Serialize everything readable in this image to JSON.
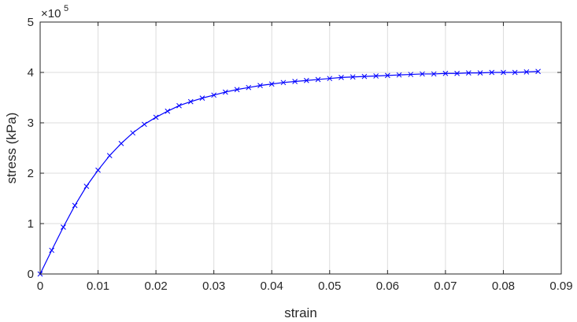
{
  "chart_data": {
    "type": "line",
    "title": "",
    "xlabel": "strain",
    "ylabel": "stress (kPa)",
    "xlim": [
      0,
      0.09
    ],
    "ylim": [
      0,
      5
    ],
    "y_exponent_label": "×10",
    "y_exponent_power": "5",
    "x_ticks": [
      "0",
      "0.01",
      "0.02",
      "0.03",
      "0.04",
      "0.05",
      "0.06",
      "0.07",
      "0.08",
      "0.09"
    ],
    "y_ticks": [
      "0",
      "1",
      "2",
      "3",
      "4",
      "5"
    ],
    "grid": true,
    "marker": "x",
    "line_color": "#0000ff",
    "series": [
      {
        "x": [
          0,
          0.002,
          0.004,
          0.006,
          0.008,
          0.01,
          0.012,
          0.014,
          0.016,
          0.018,
          0.02,
          0.022,
          0.024,
          0.026,
          0.028,
          0.03,
          0.032,
          0.034,
          0.036,
          0.038,
          0.04,
          0.042,
          0.044,
          0.046,
          0.048,
          0.05,
          0.052,
          0.054,
          0.056,
          0.058,
          0.06,
          0.062,
          0.064,
          0.066,
          0.068,
          0.07,
          0.072,
          0.074,
          0.076,
          0.078,
          0.08,
          0.082,
          0.084,
          0.086
        ],
        "values": [
          0,
          0.47,
          0.93,
          1.36,
          1.74,
          2.06,
          2.35,
          2.59,
          2.8,
          2.97,
          3.11,
          3.23,
          3.34,
          3.42,
          3.49,
          3.55,
          3.61,
          3.66,
          3.7,
          3.74,
          3.77,
          3.8,
          3.82,
          3.84,
          3.86,
          3.88,
          3.9,
          3.91,
          3.92,
          3.93,
          3.94,
          3.95,
          3.96,
          3.97,
          3.97,
          3.98,
          3.98,
          3.99,
          3.99,
          4.0,
          4.0,
          4.0,
          4.01,
          4.02
        ]
      }
    ]
  }
}
